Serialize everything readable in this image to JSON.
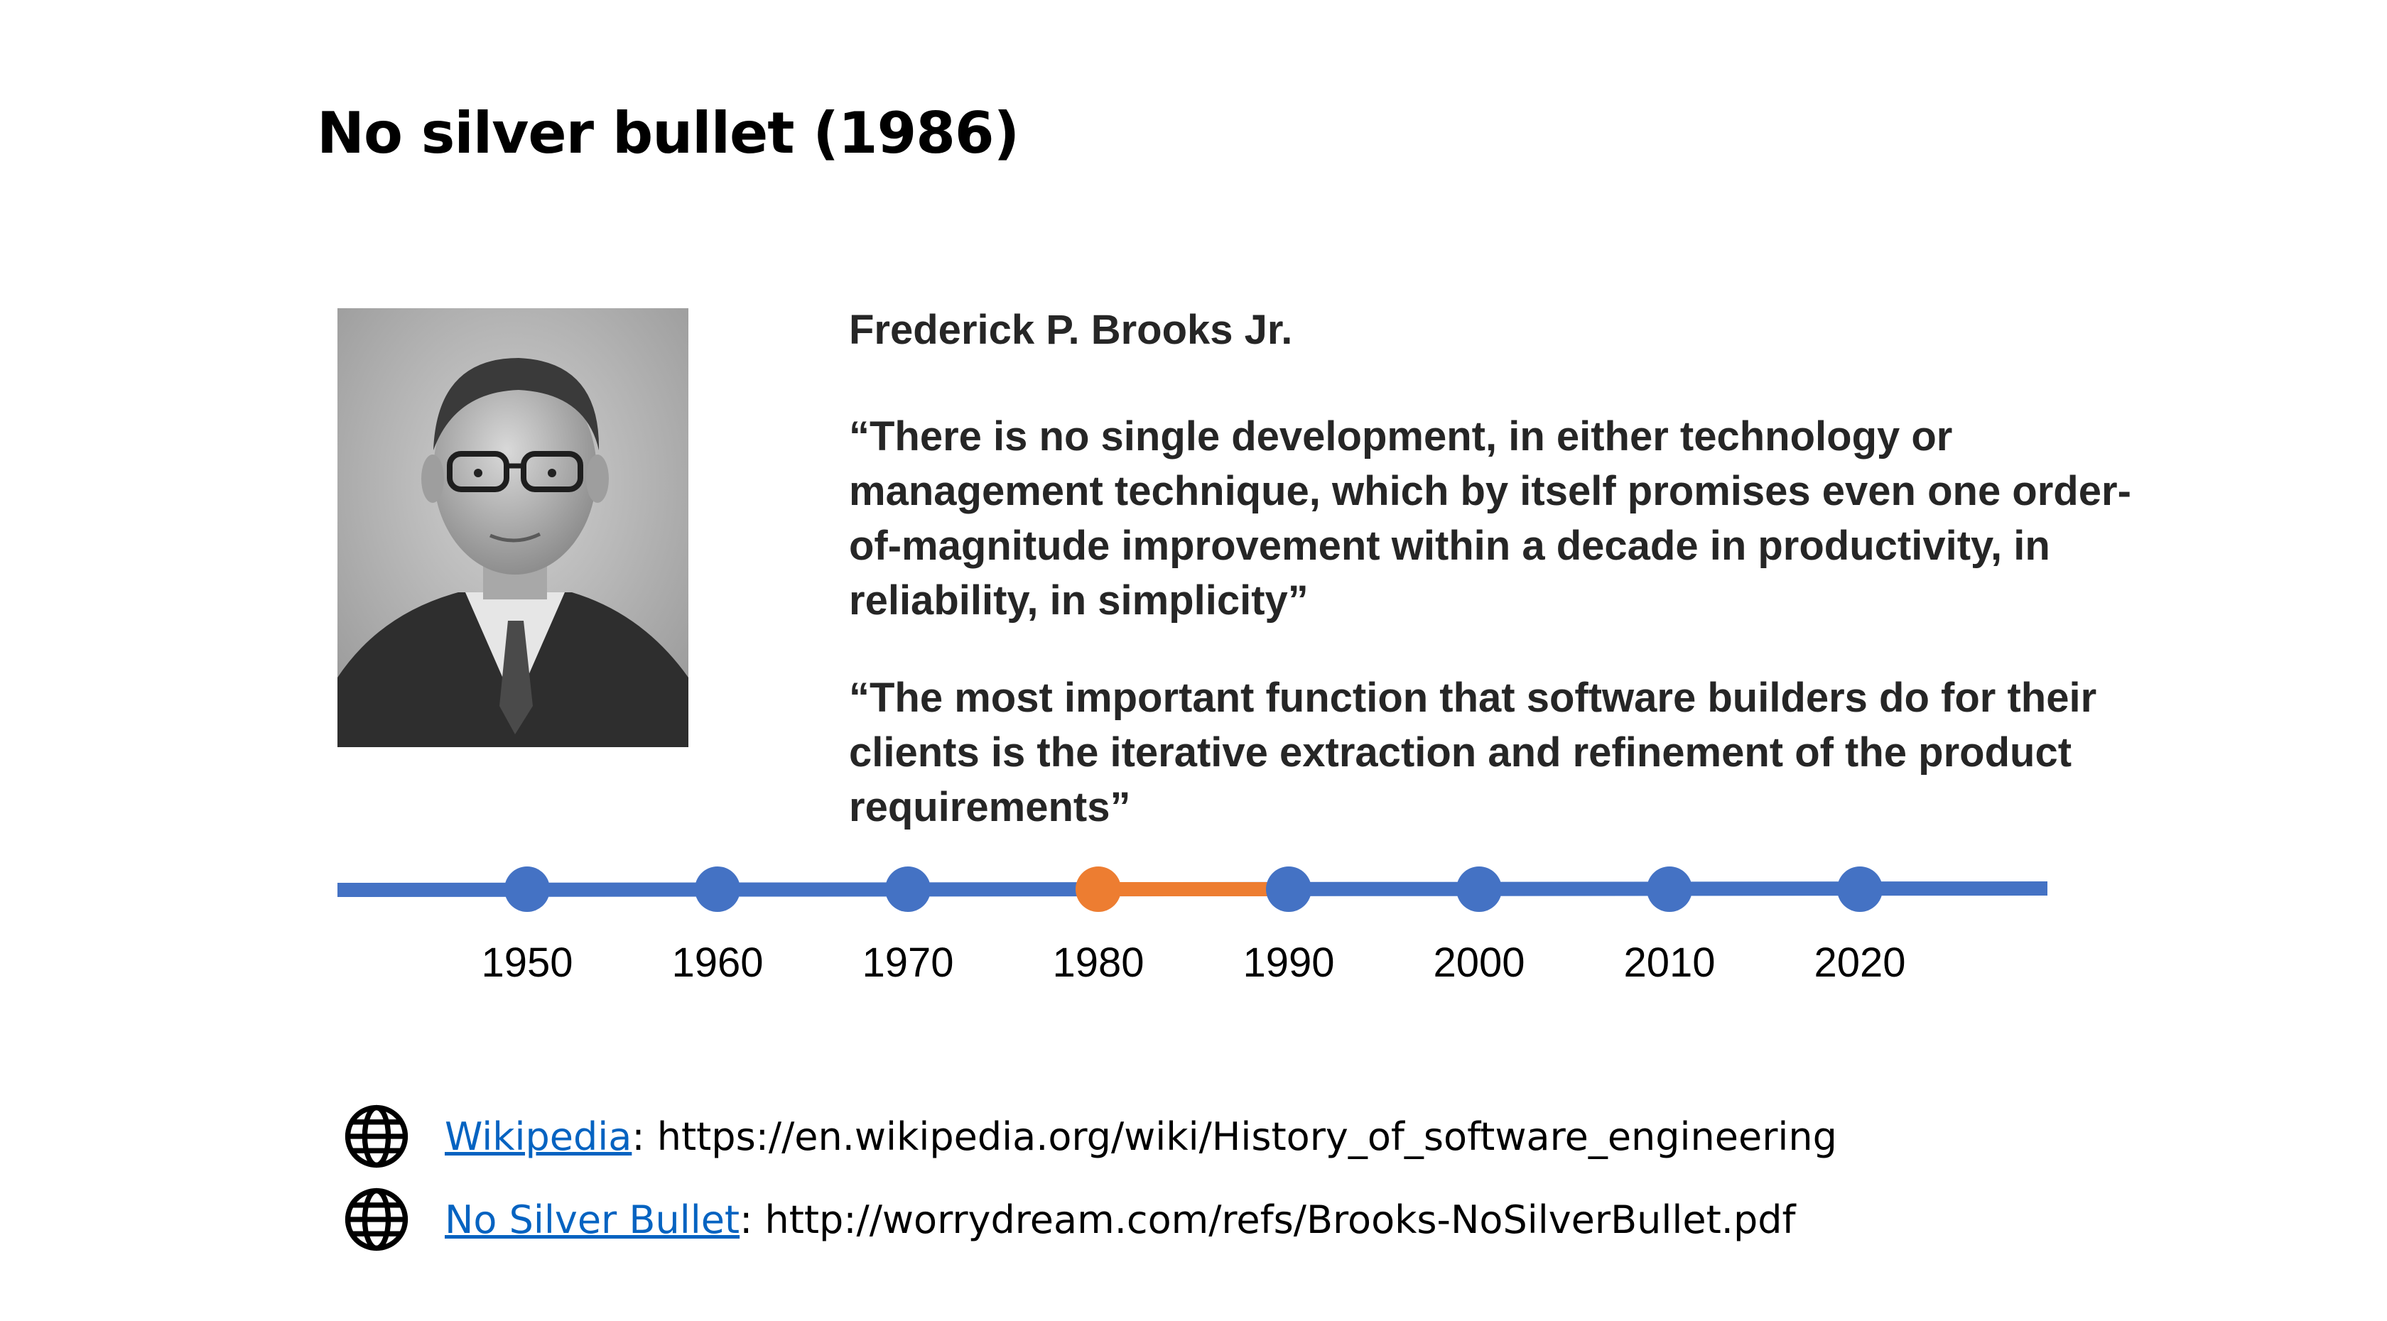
{
  "slide": {
    "title": "No silver bullet (1986)"
  },
  "portrait": {
    "icon": "portrait-photo"
  },
  "author": "Frederick P. Brooks Jr.",
  "quotes": [
    "“There is no single development, in either technology or management technique, which by itself promises even one order-of-magnitude improvement within a decade in productivity, in reliability, in simplicity”",
    "“The most important function that software builders do for their clients is the iterative extraction and refinement of the product requirements”"
  ],
  "timeline": {
    "ticks": [
      "1950",
      "1960",
      "1970",
      "1980",
      "1990",
      "2000",
      "2010",
      "2020"
    ],
    "highlight_start": "1980",
    "highlight_end": "1990",
    "line_color": "#4472C4",
    "highlight_color": "#ED7D31"
  },
  "references": [
    {
      "icon": "globe-icon",
      "link_text": "Wikipedia",
      "rest": ": https://en.wikipedia.org/wiki/History_of_software_engineering"
    },
    {
      "icon": "globe-icon",
      "link_text": "No Silver Bullet",
      "rest": ": http://worrydream.com/refs/Brooks-NoSilverBullet.pdf"
    }
  ]
}
